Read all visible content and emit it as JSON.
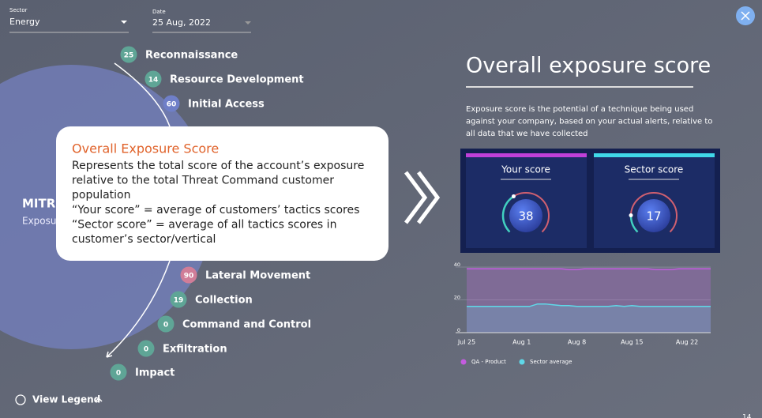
{
  "filters": [
    {
      "label": "Sector",
      "value": "Energy"
    },
    {
      "label": "Date",
      "value": "25 Aug, 2022"
    }
  ],
  "tactics": [
    {
      "score": 25,
      "name": "Reconnaissance",
      "color": "#5fa596"
    },
    {
      "score": 14,
      "name": "Resource Development",
      "color": "#5fa596"
    },
    {
      "score": 60,
      "name": "Initial Access",
      "color": "#6f7fc8"
    },
    {
      "score": 90,
      "name": "Lateral Movement",
      "color": "#d07d98"
    },
    {
      "score": 19,
      "name": "Collection",
      "color": "#5fa596"
    },
    {
      "score": 0,
      "name": "Command and Control",
      "color": "#5fa596"
    },
    {
      "score": 0,
      "name": "Exfiltration",
      "color": "#5fa596"
    },
    {
      "score": 0,
      "name": "Impact",
      "color": "#5fa596"
    }
  ],
  "background_labels": [
    "MITR",
    "Exposu"
  ],
  "tooltip": {
    "title": "Overall Exposure Score",
    "lines": [
      "Represents the total score of the account’s exposure",
      "relative to the total Threat Command customer",
      "population",
      "“Your score” = average of customers’ tactics scores",
      "“Sector score” = average of all tactics scores in",
      "customer’s sector/vertical"
    ]
  },
  "panel": {
    "title": "Overall exposure score",
    "description": [
      "Exposure score is the potential of a technique being used",
      "against your company, based on your actual alerts, relative to",
      "all data that we have collected"
    ],
    "cards": [
      {
        "label": "Your score",
        "score": 38,
        "color": "#c040d8"
      },
      {
        "label": "Sector score",
        "score": 17,
        "color": "#40d8e8"
      }
    ]
  },
  "chart": {
    "type": "line",
    "categories": [
      "Jul 25",
      null,
      null,
      null,
      null,
      null,
      null,
      "Aug 1",
      null,
      null,
      null,
      null,
      null,
      null,
      "Aug 8",
      null,
      null,
      null,
      null,
      null,
      null,
      "Aug 15",
      null,
      null,
      null,
      null,
      null,
      null,
      "Aug 22",
      null,
      null,
      null
    ],
    "series": [
      {
        "name": "QA - Product",
        "color": "#c45ce0",
        "values": [
          39,
          39,
          39,
          39,
          39,
          39,
          39,
          39,
          39,
          39,
          39,
          39,
          39,
          38.5,
          38.5,
          39,
          39,
          39,
          39,
          39,
          39,
          39,
          39,
          39,
          38.5,
          38.5,
          38.5,
          39,
          39,
          39,
          39,
          39
        ]
      },
      {
        "name": "Sector average",
        "color": "#5fd8e8",
        "values": [
          16,
          16,
          16,
          16,
          16,
          16,
          16,
          16,
          16,
          17.5,
          17.5,
          17,
          16.5,
          16.5,
          16,
          16,
          16,
          16,
          16,
          16.5,
          16,
          16.5,
          16,
          16,
          16,
          16,
          16,
          16,
          16,
          16,
          16,
          16
        ]
      }
    ],
    "ylim": [
      0,
      40
    ],
    "yticks": [
      0,
      20,
      40
    ]
  },
  "footer": {
    "legend_button": "View Legend",
    "page": "14"
  }
}
